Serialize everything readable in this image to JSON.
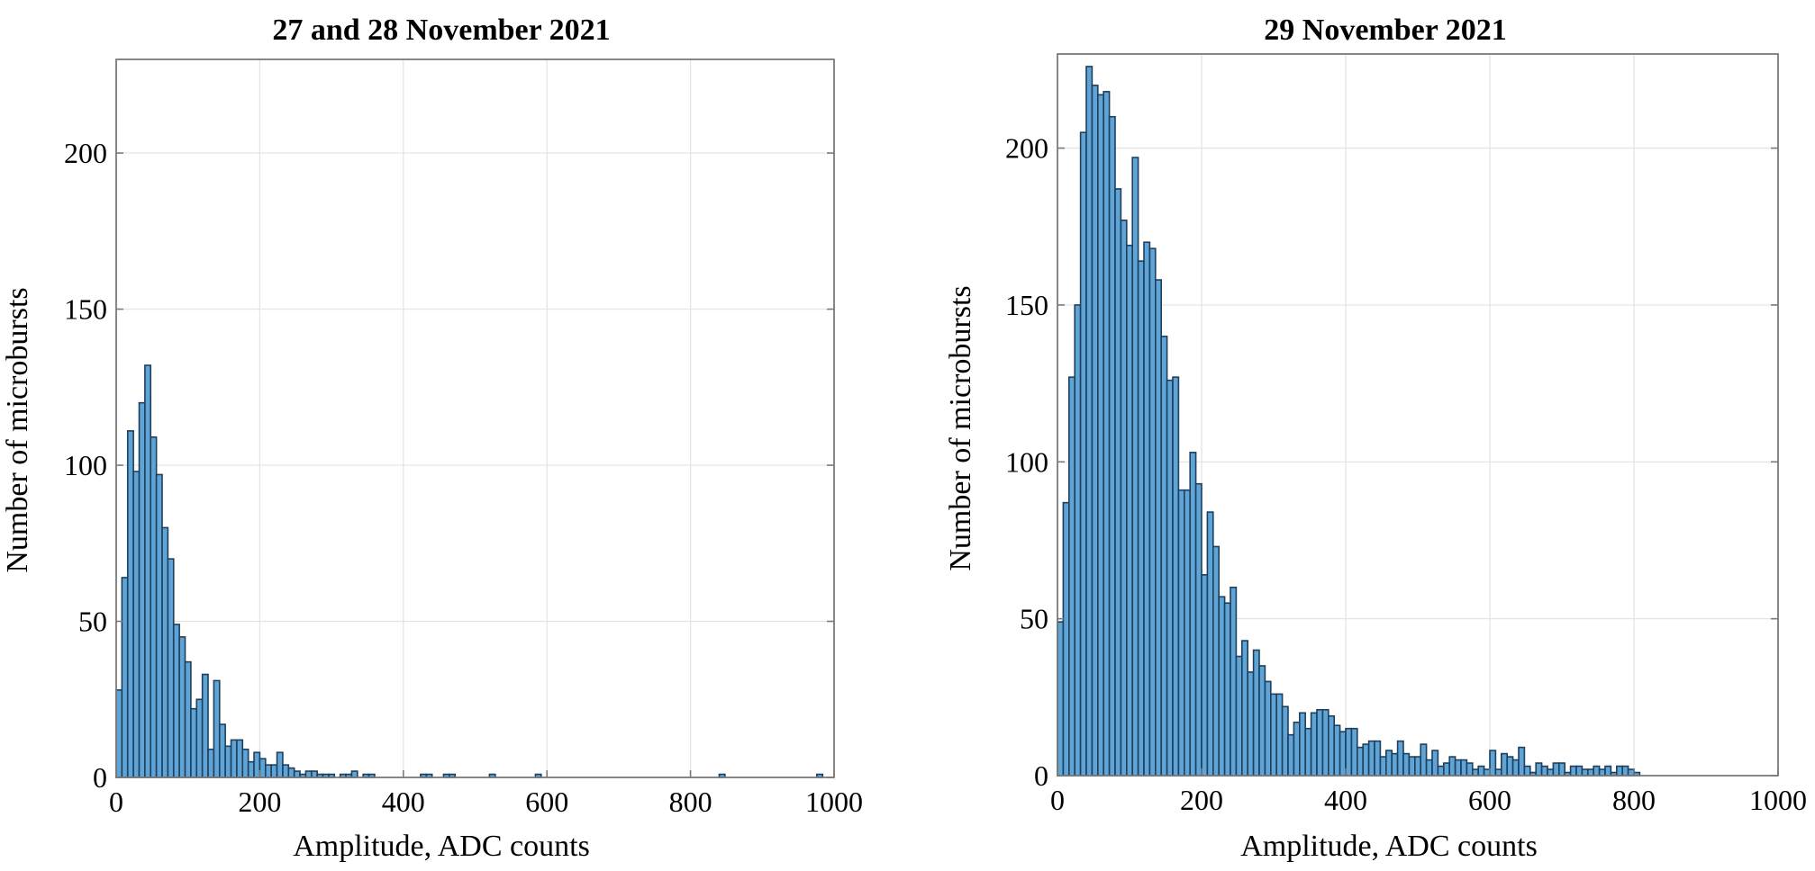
{
  "chart_data": [
    {
      "type": "bar",
      "title": "27 and 28 November 2021",
      "xlabel": "Amplitude, ADC counts",
      "ylabel": "Number of microbursts",
      "xlim": [
        0,
        1000
      ],
      "ylim": [
        0,
        230
      ],
      "xticks": [
        0,
        200,
        400,
        600,
        800,
        1000
      ],
      "yticks": [
        0,
        50,
        100,
        150,
        200
      ],
      "grid": true,
      "bin_width": 8,
      "values": [
        28,
        64,
        111,
        98,
        120,
        132,
        109,
        97,
        80,
        70,
        49,
        45,
        37,
        22,
        25,
        33,
        9,
        31,
        17,
        10,
        12,
        12,
        9,
        5,
        8,
        6,
        4,
        4,
        8,
        4,
        3,
        2,
        1,
        2,
        2,
        1,
        1,
        1,
        0,
        1,
        1,
        2,
        0,
        1,
        1,
        0,
        0,
        0,
        0,
        0,
        0,
        0,
        0,
        1,
        1,
        0,
        0,
        1,
        1,
        0,
        0,
        0,
        0,
        0,
        0,
        1,
        0,
        0,
        0,
        0,
        0,
        0,
        0,
        1,
        0,
        0,
        0,
        0,
        0,
        0,
        0,
        0,
        0,
        0,
        0,
        0,
        0,
        0,
        0,
        0,
        0,
        0,
        0,
        0,
        0,
        0,
        0,
        0,
        0,
        0,
        0,
        0,
        0,
        0,
        0,
        1,
        0,
        0,
        0,
        0,
        0,
        0,
        0,
        0,
        0,
        0,
        0,
        0,
        0,
        0,
        0,
        0,
        1,
        0,
        0
      ]
    },
    {
      "type": "bar",
      "title": "29 November 2021",
      "xlabel": "Amplitude, ADC counts",
      "ylabel": "Number of microbursts",
      "xlim": [
        0,
        1000
      ],
      "ylim": [
        0,
        230
      ],
      "xticks": [
        0,
        200,
        400,
        600,
        800,
        1000
      ],
      "yticks": [
        0,
        50,
        100,
        150,
        200
      ],
      "grid": true,
      "bin_width": 8,
      "values": [
        49,
        87,
        127,
        150,
        205,
        226,
        220,
        217,
        218,
        210,
        187,
        177,
        169,
        197,
        164,
        170,
        168,
        158,
        140,
        126,
        127,
        91,
        91,
        103,
        93,
        64,
        84,
        73,
        57,
        55,
        60,
        38,
        43,
        33,
        40,
        35,
        30,
        26,
        26,
        22,
        13,
        17,
        20,
        15,
        20,
        21,
        21,
        19,
        16,
        14,
        15,
        15,
        9,
        10,
        11,
        11,
        6,
        8,
        7,
        11,
        7,
        6,
        6,
        10,
        5,
        8,
        3,
        4,
        6,
        5,
        5,
        4,
        2,
        3,
        2,
        8,
        2,
        7,
        6,
        5,
        9,
        3,
        1,
        4,
        3,
        2,
        4,
        4,
        1,
        3,
        3,
        2,
        2,
        3,
        2,
        3,
        1,
        3,
        3,
        2,
        1
      ]
    }
  ]
}
